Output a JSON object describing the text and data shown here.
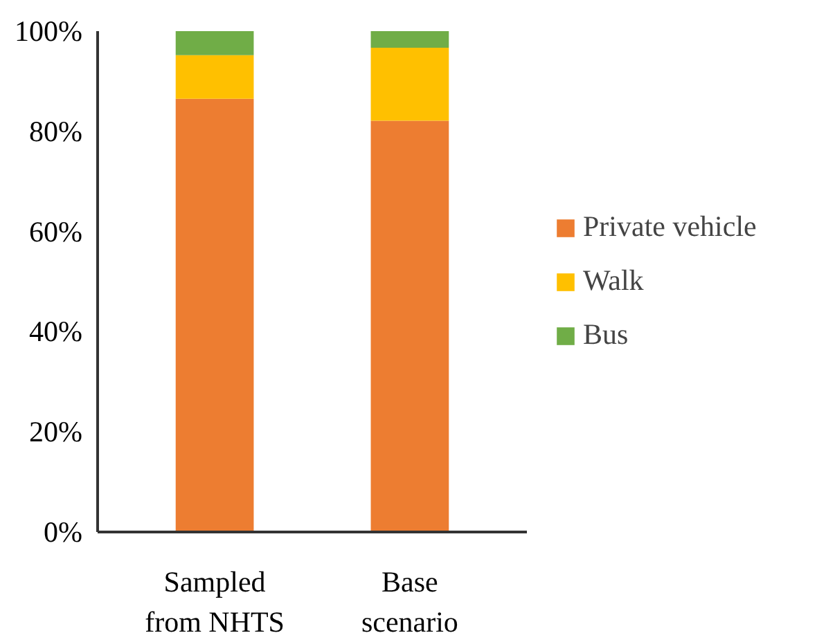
{
  "chart_data": {
    "type": "bar",
    "stacked": true,
    "categories": [
      "Sampled\nfrom NHTS",
      "Base\nscenario"
    ],
    "series": [
      {
        "name": "Private vehicle",
        "color": "#ed7d31",
        "values": [
          86.5,
          82.1
        ]
      },
      {
        "name": "Walk",
        "color": "#ffc000",
        "values": [
          8.7,
          14.6
        ]
      },
      {
        "name": "Bus",
        "color": "#70ad47",
        "values": [
          4.8,
          3.3
        ]
      }
    ],
    "ylim": [
      0,
      100
    ],
    "yticks": [
      {
        "value": 0,
        "label": "0%"
      },
      {
        "value": 20,
        "label": "20%"
      },
      {
        "value": 40,
        "label": "40%"
      },
      {
        "value": 60,
        "label": "60%"
      },
      {
        "value": 80,
        "label": "80%"
      },
      {
        "value": 100,
        "label": "100%"
      }
    ],
    "grid": false,
    "legend": "right"
  }
}
